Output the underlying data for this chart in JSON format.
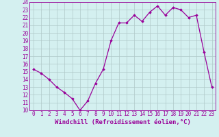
{
  "x": [
    0,
    1,
    2,
    3,
    4,
    5,
    6,
    7,
    8,
    9,
    10,
    11,
    12,
    13,
    14,
    15,
    16,
    17,
    18,
    19,
    20,
    21,
    22,
    23
  ],
  "y": [
    15.3,
    14.8,
    14.0,
    13.0,
    12.3,
    11.5,
    10.0,
    11.2,
    13.5,
    15.3,
    19.0,
    21.3,
    21.3,
    22.3,
    21.5,
    22.7,
    23.5,
    22.3,
    23.3,
    23.0,
    22.0,
    22.3,
    17.5,
    13.0
  ],
  "xlim": [
    -0.5,
    23.5
  ],
  "ylim": [
    10,
    24
  ],
  "yticks": [
    10,
    11,
    12,
    13,
    14,
    15,
    16,
    17,
    18,
    19,
    20,
    21,
    22,
    23,
    24
  ],
  "xticks": [
    0,
    1,
    2,
    3,
    4,
    5,
    6,
    7,
    8,
    9,
    10,
    11,
    12,
    13,
    14,
    15,
    16,
    17,
    18,
    19,
    20,
    21,
    22,
    23
  ],
  "line_color": "#990099",
  "marker": "D",
  "marker_size": 1.8,
  "line_width": 0.9,
  "xlabel": "Windchill (Refroidissement éolien,°C)",
  "background_color": "#d4f0f0",
  "grid_color": "#b0c8c8",
  "xlabel_fontsize": 6.5,
  "tick_fontsize": 5.5
}
